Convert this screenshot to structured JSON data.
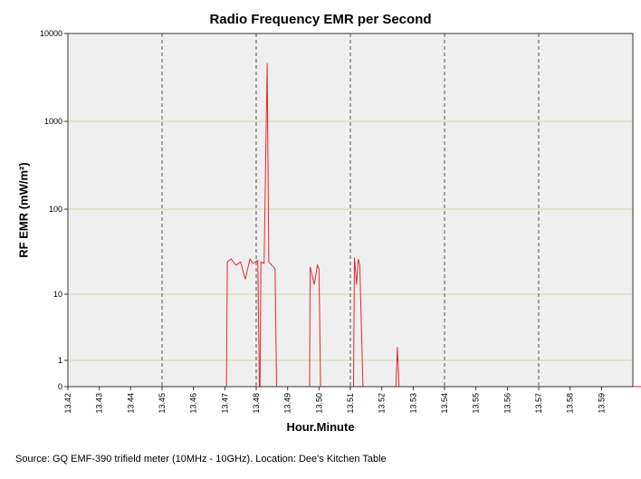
{
  "chart_data": {
    "type": "line",
    "title": "Radio Frequency EMR per Second",
    "xlabel": "Hour.Minute",
    "ylabel": "RF EMR (mW/m²)",
    "y_scale": "log",
    "ylim": [
      0,
      10000
    ],
    "y_ticks": [
      "10000",
      "1000",
      "100",
      "10",
      "1",
      "0"
    ],
    "y_tick_values": [
      10000,
      1000,
      100,
      10,
      1,
      0
    ],
    "x_ticks": [
      "13.42",
      "13.43",
      "13.44",
      "13.45",
      "13.46",
      "13.47",
      "13.48",
      "13.49",
      "13.50",
      "13.51",
      "13.52",
      "13.53",
      "13.54",
      "13.55",
      "13.56",
      "13.57",
      "13.58",
      "13.59"
    ],
    "xlim_minutes": [
      13.42,
      14.0
    ],
    "grid": "vertical dashed dark lines every 3 minutes; horizontal light olive lines at each y tick",
    "line_color": "#e8262b",
    "background": "#efefef",
    "series": [
      {
        "values_note": "x in hour.minute (fractional minutes), y in mW/m²",
        "points": [
          [
            13.42,
            0
          ],
          [
            13.4705,
            0
          ],
          [
            13.4708,
            24
          ],
          [
            13.472,
            26
          ],
          [
            13.4735,
            22
          ],
          [
            13.475,
            24
          ],
          [
            13.4765,
            15
          ],
          [
            13.478,
            26
          ],
          [
            13.479,
            23
          ],
          [
            13.4805,
            25
          ],
          [
            13.481,
            0
          ],
          [
            13.4812,
            0
          ],
          [
            13.4815,
            24
          ],
          [
            13.4825,
            23
          ],
          [
            13.4835,
            4600
          ],
          [
            13.484,
            24
          ],
          [
            13.486,
            20
          ],
          [
            13.4865,
            0
          ],
          [
            13.497,
            0
          ],
          [
            13.4972,
            21
          ],
          [
            13.4985,
            13
          ],
          [
            13.4995,
            22
          ],
          [
            13.5,
            20
          ],
          [
            13.5005,
            0
          ],
          [
            13.511,
            0
          ],
          [
            13.5113,
            27
          ],
          [
            13.512,
            13
          ],
          [
            13.5125,
            26
          ],
          [
            13.513,
            22
          ],
          [
            13.514,
            0
          ],
          [
            13.5245,
            0
          ],
          [
            13.525,
            1.6
          ],
          [
            13.5255,
            0
          ],
          [
            14.0,
            0
          ]
        ]
      }
    ]
  },
  "source": "Source: GQ EMF-390 trifield meter (10MHz - 10GHz). Location: Dee's Kitchen Table"
}
